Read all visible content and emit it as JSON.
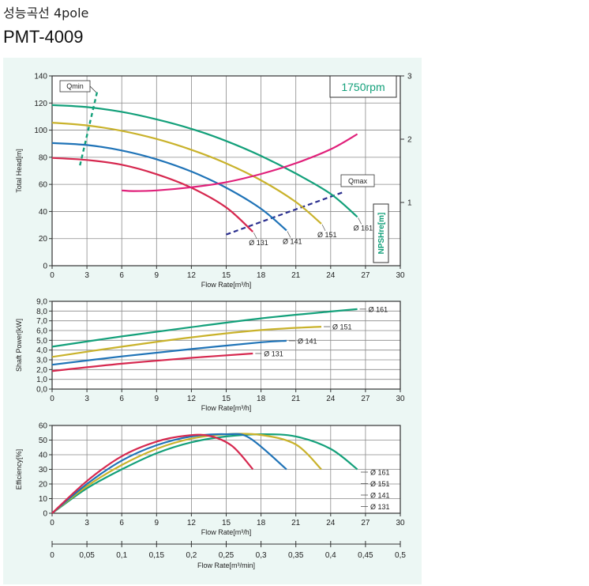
{
  "header": {
    "category": "성능곡선 4pole",
    "model": "PMT-4009"
  },
  "colors": {
    "d161": "#13a07a",
    "d151": "#c9b22b",
    "d141": "#1f73b7",
    "d131": "#d6284f",
    "nps": "#e0207a",
    "qline_min": "#13a07a",
    "qline_max": "#2b2f8f",
    "panel": "#ecf7f4"
  },
  "chart_data": [
    {
      "id": "head",
      "type": "line",
      "ylabel": "Total Head[m]",
      "xlabel": "Flow Rate[m³/h]",
      "y2label": "NPSHre[m]",
      "rpm_label": "1750rpm",
      "qmin_label": "Qmin",
      "qmax_label": "Qmax",
      "xlim": [
        0,
        30
      ],
      "ylim": [
        0,
        140
      ],
      "y2lim": [
        0,
        3
      ],
      "xticks": [
        "0",
        "3",
        "6",
        "9",
        "12",
        "15",
        "18",
        "21",
        "24",
        "27",
        "30"
      ],
      "yticks": [
        "0",
        "20",
        "40",
        "60",
        "80",
        "100",
        "120",
        "140"
      ],
      "y2ticks": [
        "1",
        "2",
        "3"
      ],
      "series": [
        {
          "name": "Ø 161",
          "color": "d161",
          "points": [
            [
              0,
              118.5
            ],
            [
              3,
              117
            ],
            [
              6,
              113.5
            ],
            [
              9,
              108
            ],
            [
              12,
              101
            ],
            [
              15,
              92
            ],
            [
              18,
              81
            ],
            [
              21,
              68
            ],
            [
              24,
              53
            ],
            [
              26.3,
              36
            ]
          ]
        },
        {
          "name": "Ø 151",
          "color": "d151",
          "points": [
            [
              0,
              105.5
            ],
            [
              3,
              103.5
            ],
            [
              6,
              99.5
            ],
            [
              9,
              93.5
            ],
            [
              12,
              85.5
            ],
            [
              15,
              75.5
            ],
            [
              18,
              63
            ],
            [
              21,
              47
            ],
            [
              23.2,
              31
            ]
          ]
        },
        {
          "name": "Ø 141",
          "color": "d141",
          "points": [
            [
              0,
              90.5
            ],
            [
              3,
              89
            ],
            [
              6,
              85
            ],
            [
              9,
              78.5
            ],
            [
              12,
              69.5
            ],
            [
              15,
              57.5
            ],
            [
              18,
              42
            ],
            [
              20.2,
              26
            ]
          ]
        },
        {
          "name": "Ø 131",
          "color": "d131",
          "points": [
            [
              0,
              79.5
            ],
            [
              3,
              78
            ],
            [
              6,
              74.5
            ],
            [
              9,
              67.5
            ],
            [
              12,
              57.5
            ],
            [
              15,
              43
            ],
            [
              17.3,
              25
            ]
          ]
        }
      ],
      "npsh": {
        "name": "NPSHre",
        "color": "nps",
        "points": [
          [
            6,
            1.19
          ],
          [
            7,
            1.18
          ],
          [
            9,
            1.19
          ],
          [
            12,
            1.24
          ],
          [
            15,
            1.32
          ],
          [
            18,
            1.45
          ],
          [
            21,
            1.62
          ],
          [
            24,
            1.84
          ],
          [
            26.3,
            2.08
          ]
        ]
      },
      "qmin_line": [
        [
          2.4,
          74
        ],
        [
          3.9,
          129
        ]
      ],
      "qmax_line": [
        [
          15,
          23
        ],
        [
          25,
          54
        ]
      ]
    },
    {
      "id": "power",
      "type": "line",
      "ylabel": "Shaft Power[kW]",
      "xlabel": "Flow Rate[m³/h]",
      "xlim": [
        0,
        30
      ],
      "ylim": [
        0,
        9
      ],
      "xticks": [
        "0",
        "3",
        "6",
        "9",
        "12",
        "15",
        "18",
        "21",
        "24",
        "27",
        "30"
      ],
      "yticks": [
        "0,0",
        "1,0",
        "2,0",
        "3,0",
        "4,0",
        "5,0",
        "6,0",
        "7,0",
        "8,0",
        "9,0"
      ],
      "series": [
        {
          "name": "Ø 161",
          "color": "d161",
          "points": [
            [
              0,
              4.35
            ],
            [
              6,
              5.4
            ],
            [
              12,
              6.35
            ],
            [
              18,
              7.25
            ],
            [
              24,
              7.95
            ],
            [
              26.3,
              8.2
            ]
          ]
        },
        {
          "name": "Ø 151",
          "color": "d151",
          "points": [
            [
              0,
              3.3
            ],
            [
              6,
              4.35
            ],
            [
              12,
              5.3
            ],
            [
              18,
              6.05
            ],
            [
              23.2,
              6.4
            ]
          ]
        },
        {
          "name": "Ø 141",
          "color": "d141",
          "points": [
            [
              0,
              2.5
            ],
            [
              6,
              3.35
            ],
            [
              12,
              4.1
            ],
            [
              18,
              4.8
            ],
            [
              20.2,
              4.95
            ]
          ]
        },
        {
          "name": "Ø 131",
          "color": "d131",
          "points": [
            [
              0,
              1.85
            ],
            [
              6,
              2.6
            ],
            [
              12,
              3.2
            ],
            [
              17.3,
              3.65
            ]
          ]
        }
      ]
    },
    {
      "id": "efficiency",
      "type": "line",
      "ylabel": "Efficiency[%]",
      "xlabel": "Flow Rate[m³/h]",
      "x2label": "Flow Rate[m³/min]",
      "xlim": [
        0,
        30
      ],
      "ylim": [
        0,
        60
      ],
      "xticks": [
        "0",
        "3",
        "6",
        "9",
        "12",
        "15",
        "18",
        "21",
        "24",
        "27",
        "30"
      ],
      "yticks": [
        "0",
        "10",
        "20",
        "30",
        "40",
        "50",
        "60"
      ],
      "x2ticks": [
        "0",
        "0,05",
        "0,1",
        "0,15",
        "0,2",
        "0,25",
        "0,3",
        "0,35",
        "0,4",
        "0,45",
        "0,5"
      ],
      "series": [
        {
          "name": "Ø 161",
          "color": "d161",
          "points": [
            [
              0,
              0
            ],
            [
              3,
              17
            ],
            [
              6,
              30
            ],
            [
              9,
              41
            ],
            [
              12,
              48.5
            ],
            [
              15,
              52.5
            ],
            [
              18,
              54
            ],
            [
              21,
              52.5
            ],
            [
              24,
              44
            ],
            [
              26.3,
              30
            ]
          ]
        },
        {
          "name": "Ø 151",
          "color": "d151",
          "points": [
            [
              0,
              0
            ],
            [
              3,
              18.5
            ],
            [
              6,
              33
            ],
            [
              9,
              44
            ],
            [
              12,
              51
            ],
            [
              15,
              54
            ],
            [
              18,
              53.5
            ],
            [
              21,
              47
            ],
            [
              23.2,
              30
            ]
          ]
        },
        {
          "name": "Ø 141",
          "color": "d141",
          "points": [
            [
              0,
              0
            ],
            [
              3,
              20
            ],
            [
              6,
              36
            ],
            [
              9,
              46.5
            ],
            [
              12,
              52.5
            ],
            [
              15,
              54
            ],
            [
              17,
              51.5
            ],
            [
              20.2,
              30
            ]
          ]
        },
        {
          "name": "Ø 131",
          "color": "d131",
          "points": [
            [
              0,
              0
            ],
            [
              3,
              22
            ],
            [
              6,
              39
            ],
            [
              9,
              49
            ],
            [
              11.5,
              53
            ],
            [
              13.5,
              53
            ],
            [
              15.5,
              46
            ],
            [
              17.3,
              30
            ]
          ]
        }
      ],
      "legend": [
        "Ø 161",
        "Ø 151",
        "Ø 141",
        "Ø 131"
      ]
    }
  ]
}
